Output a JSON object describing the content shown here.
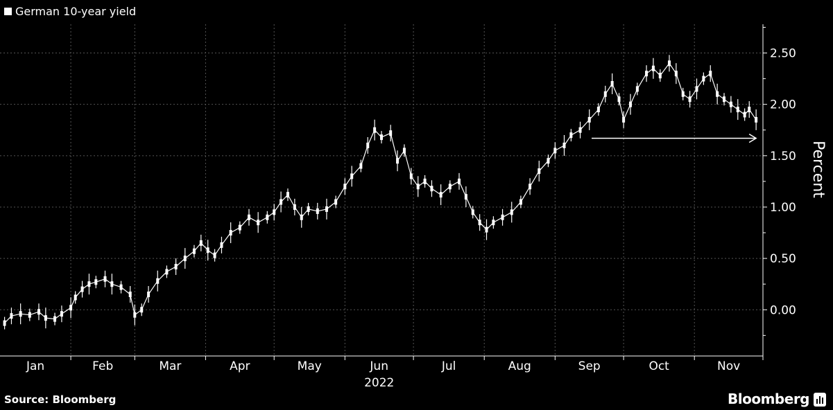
{
  "legend": {
    "label": "German 10-year yield"
  },
  "footer": {
    "source": "Source: Bloomberg",
    "brand": "Bloomberg"
  },
  "chart_data": {
    "type": "line",
    "subtype": "candlestick",
    "legend_label": "German 10-year yield",
    "ylabel": "Percent",
    "year_label": "2022",
    "ylim": [
      -0.45,
      2.78
    ],
    "yticks": [
      0,
      0.5,
      1.0,
      1.5,
      2.0,
      2.5
    ],
    "ytick_labels": [
      "0.00",
      "0.50",
      "1.00",
      "1.50",
      "2.00",
      "2.50"
    ],
    "months": [
      "Jan",
      "Feb",
      "Mar",
      "Apr",
      "May",
      "Jun",
      "Jul",
      "Aug",
      "Sep",
      "Oct",
      "Nov"
    ],
    "grid": true,
    "colors": {
      "background": "#000000",
      "series": "#ffffff",
      "grid": "#555555"
    },
    "annotation": {
      "type": "arrow",
      "from_x": "2022-09-17",
      "to_x": "2022-11-28",
      "y": 1.67
    },
    "series": [
      {
        "values": [
          {
            "x": "2022-01-03",
            "y": -0.13
          },
          {
            "x": "2022-01-06",
            "y": -0.06
          },
          {
            "x": "2022-01-10",
            "y": -0.04
          },
          {
            "x": "2022-01-14",
            "y": -0.05
          },
          {
            "x": "2022-01-18",
            "y": -0.02
          },
          {
            "x": "2022-01-21",
            "y": -0.08
          },
          {
            "x": "2022-01-25",
            "y": -0.09
          },
          {
            "x": "2022-01-28",
            "y": -0.04
          },
          {
            "x": "2022-02-01",
            "y": 0.02
          },
          {
            "x": "2022-02-03",
            "y": 0.12
          },
          {
            "x": "2022-02-06",
            "y": 0.2
          },
          {
            "x": "2022-02-09",
            "y": 0.25
          },
          {
            "x": "2022-02-12",
            "y": 0.27
          },
          {
            "x": "2022-02-16",
            "y": 0.3
          },
          {
            "x": "2022-02-19",
            "y": 0.25
          },
          {
            "x": "2022-02-23",
            "y": 0.22
          },
          {
            "x": "2022-02-27",
            "y": 0.15
          },
          {
            "x": "2022-03-01",
            "y": -0.05
          },
          {
            "x": "2022-03-04",
            "y": 0.0
          },
          {
            "x": "2022-03-07",
            "y": 0.15
          },
          {
            "x": "2022-03-11",
            "y": 0.28
          },
          {
            "x": "2022-03-15",
            "y": 0.37
          },
          {
            "x": "2022-03-19",
            "y": 0.42
          },
          {
            "x": "2022-03-23",
            "y": 0.5
          },
          {
            "x": "2022-03-27",
            "y": 0.57
          },
          {
            "x": "2022-03-30",
            "y": 0.65
          },
          {
            "x": "2022-04-02",
            "y": 0.58
          },
          {
            "x": "2022-04-05",
            "y": 0.53
          },
          {
            "x": "2022-04-08",
            "y": 0.63
          },
          {
            "x": "2022-04-12",
            "y": 0.75
          },
          {
            "x": "2022-04-16",
            "y": 0.8
          },
          {
            "x": "2022-04-20",
            "y": 0.9
          },
          {
            "x": "2022-04-24",
            "y": 0.85
          },
          {
            "x": "2022-04-28",
            "y": 0.9
          },
          {
            "x": "2022-05-01",
            "y": 0.95
          },
          {
            "x": "2022-05-04",
            "y": 1.05
          },
          {
            "x": "2022-05-07",
            "y": 1.12
          },
          {
            "x": "2022-05-10",
            "y": 1.0
          },
          {
            "x": "2022-05-13",
            "y": 0.9
          },
          {
            "x": "2022-05-16",
            "y": 0.98
          },
          {
            "x": "2022-05-20",
            "y": 0.96
          },
          {
            "x": "2022-05-24",
            "y": 0.98
          },
          {
            "x": "2022-05-28",
            "y": 1.05
          },
          {
            "x": "2022-06-01",
            "y": 1.2
          },
          {
            "x": "2022-06-04",
            "y": 1.3
          },
          {
            "x": "2022-06-08",
            "y": 1.4
          },
          {
            "x": "2022-06-11",
            "y": 1.6
          },
          {
            "x": "2022-06-14",
            "y": 1.75
          },
          {
            "x": "2022-06-17",
            "y": 1.68
          },
          {
            "x": "2022-06-21",
            "y": 1.72
          },
          {
            "x": "2022-06-24",
            "y": 1.45
          },
          {
            "x": "2022-06-27",
            "y": 1.55
          },
          {
            "x": "2022-06-30",
            "y": 1.3
          },
          {
            "x": "2022-07-03",
            "y": 1.2
          },
          {
            "x": "2022-07-06",
            "y": 1.25
          },
          {
            "x": "2022-07-09",
            "y": 1.18
          },
          {
            "x": "2022-07-13",
            "y": 1.12
          },
          {
            "x": "2022-07-17",
            "y": 1.2
          },
          {
            "x": "2022-07-21",
            "y": 1.25
          },
          {
            "x": "2022-07-24",
            "y": 1.1
          },
          {
            "x": "2022-07-27",
            "y": 0.95
          },
          {
            "x": "2022-07-30",
            "y": 0.85
          },
          {
            "x": "2022-08-02",
            "y": 0.78
          },
          {
            "x": "2022-08-05",
            "y": 0.85
          },
          {
            "x": "2022-08-09",
            "y": 0.9
          },
          {
            "x": "2022-08-13",
            "y": 0.95
          },
          {
            "x": "2022-08-17",
            "y": 1.05
          },
          {
            "x": "2022-08-21",
            "y": 1.2
          },
          {
            "x": "2022-08-25",
            "y": 1.35
          },
          {
            "x": "2022-08-29",
            "y": 1.45
          },
          {
            "x": "2022-09-01",
            "y": 1.55
          },
          {
            "x": "2022-09-05",
            "y": 1.6
          },
          {
            "x": "2022-09-08",
            "y": 1.7
          },
          {
            "x": "2022-09-12",
            "y": 1.75
          },
          {
            "x": "2022-09-16",
            "y": 1.85
          },
          {
            "x": "2022-09-20",
            "y": 1.95
          },
          {
            "x": "2022-09-23",
            "y": 2.1
          },
          {
            "x": "2022-09-26",
            "y": 2.2
          },
          {
            "x": "2022-09-29",
            "y": 2.05
          },
          {
            "x": "2022-10-01",
            "y": 1.85
          },
          {
            "x": "2022-10-04",
            "y": 2.0
          },
          {
            "x": "2022-10-07",
            "y": 2.15
          },
          {
            "x": "2022-10-11",
            "y": 2.3
          },
          {
            "x": "2022-10-14",
            "y": 2.35
          },
          {
            "x": "2022-10-17",
            "y": 2.28
          },
          {
            "x": "2022-10-21",
            "y": 2.4
          },
          {
            "x": "2022-10-24",
            "y": 2.3
          },
          {
            "x": "2022-10-27",
            "y": 2.1
          },
          {
            "x": "2022-10-30",
            "y": 2.05
          },
          {
            "x": "2022-11-02",
            "y": 2.15
          },
          {
            "x": "2022-11-05",
            "y": 2.25
          },
          {
            "x": "2022-11-08",
            "y": 2.3
          },
          {
            "x": "2022-11-11",
            "y": 2.1
          },
          {
            "x": "2022-11-14",
            "y": 2.05
          },
          {
            "x": "2022-11-17",
            "y": 2.0
          },
          {
            "x": "2022-11-20",
            "y": 1.95
          },
          {
            "x": "2022-11-23",
            "y": 1.9
          },
          {
            "x": "2022-11-25",
            "y": 1.95
          },
          {
            "x": "2022-11-28",
            "y": 1.85
          }
        ]
      }
    ]
  }
}
